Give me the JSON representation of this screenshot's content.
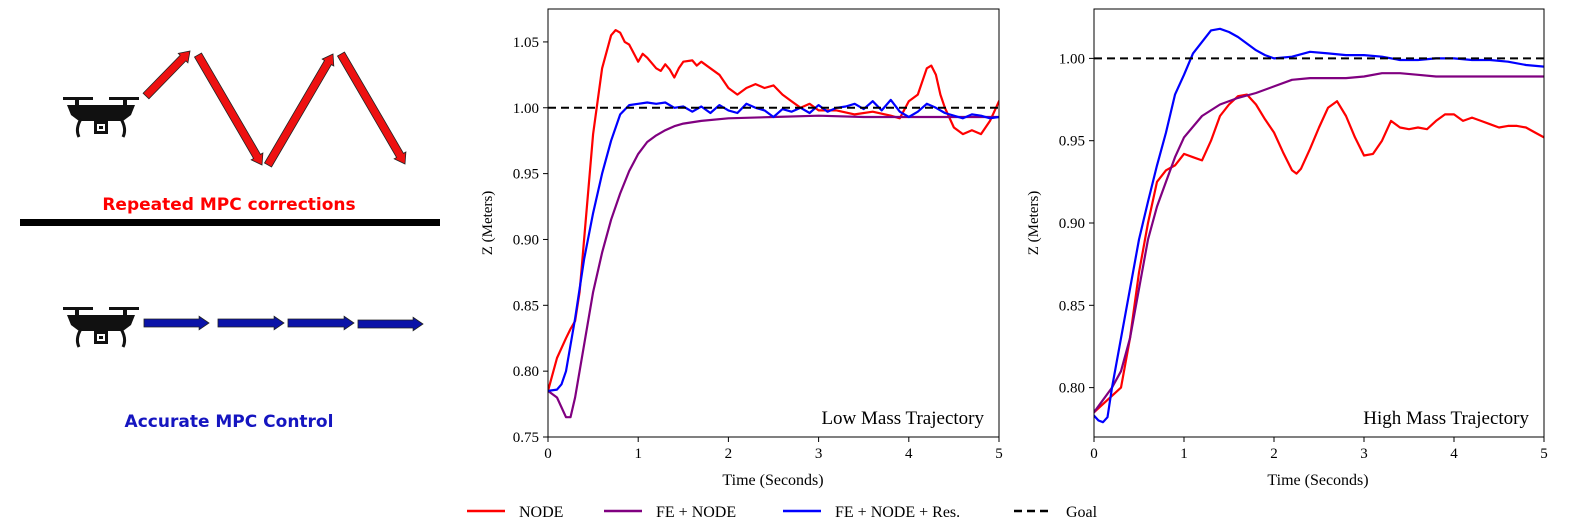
{
  "colors": {
    "node": "#ff0000",
    "fe_node": "#800080",
    "fe_node_res": "#0000ff",
    "goal": "#000000",
    "label_red": "#ff0000",
    "label_blue": "#1515c0",
    "arrow_red": "#ee1111",
    "arrow_blue": "#0b13a8"
  },
  "illustration": {
    "top_caption": "Repeated MPC corrections",
    "bottom_caption": "Accurate MPC Control",
    "top_drone_icon": "drone-icon",
    "bottom_drone_icon": "drone-icon"
  },
  "legend": {
    "items": [
      {
        "label": "NODE",
        "color": "#ff0000",
        "style": "solid"
      },
      {
        "label": "FE + NODE",
        "color": "#800080",
        "style": "solid"
      },
      {
        "label": "FE + NODE + Res.",
        "color": "#0000ff",
        "style": "solid"
      },
      {
        "label": "Goal",
        "color": "#000000",
        "style": "dashed"
      }
    ]
  },
  "chart_data": [
    {
      "type": "line",
      "title": "Low Mass Trajectory",
      "xlabel": "Time (Seconds)",
      "ylabel": "Z (Meters)",
      "xlim": [
        0,
        5
      ],
      "ylim": [
        0.75,
        1.075
      ],
      "xticks": [
        0,
        1,
        2,
        3,
        4,
        5
      ],
      "yticks": [
        0.75,
        0.8,
        0.85,
        0.9,
        0.95,
        1.0,
        1.05
      ],
      "ytick_labels": [
        "0.75",
        "0.80",
        "0.85",
        "0.90",
        "0.95",
        "1.00",
        "1.05"
      ],
      "goal": 1.0,
      "series": [
        {
          "name": "NODE",
          "x": [
            0,
            0.1,
            0.2,
            0.25,
            0.3,
            0.35,
            0.4,
            0.5,
            0.6,
            0.7,
            0.75,
            0.8,
            0.85,
            0.9,
            1.0,
            1.05,
            1.1,
            1.2,
            1.25,
            1.3,
            1.35,
            1.4,
            1.45,
            1.5,
            1.6,
            1.65,
            1.7,
            1.8,
            1.9,
            2.0,
            2.1,
            2.2,
            2.3,
            2.4,
            2.5,
            2.6,
            2.7,
            2.8,
            2.9,
            3.0,
            3.2,
            3.4,
            3.6,
            3.8,
            3.9,
            4.0,
            4.1,
            4.2,
            4.25,
            4.3,
            4.35,
            4.4,
            4.5,
            4.6,
            4.7,
            4.8,
            4.9,
            5.0
          ],
          "values": [
            0.785,
            0.81,
            0.825,
            0.832,
            0.838,
            0.86,
            0.9,
            0.98,
            1.03,
            1.055,
            1.059,
            1.057,
            1.05,
            1.048,
            1.035,
            1.041,
            1.038,
            1.03,
            1.028,
            1.033,
            1.029,
            1.023,
            1.03,
            1.035,
            1.036,
            1.032,
            1.035,
            1.03,
            1.025,
            1.015,
            1.01,
            1.015,
            1.018,
            1.015,
            1.017,
            1.01,
            1.005,
            1.0,
            1.003,
            0.998,
            0.998,
            0.995,
            0.997,
            0.994,
            0.992,
            1.005,
            1.01,
            1.03,
            1.032,
            1.025,
            1.01,
            1.0,
            0.985,
            0.98,
            0.983,
            0.98,
            0.99,
            1.005
          ]
        },
        {
          "name": "FE + NODE",
          "x": [
            0,
            0.1,
            0.2,
            0.25,
            0.3,
            0.4,
            0.5,
            0.6,
            0.7,
            0.8,
            0.9,
            1.0,
            1.1,
            1.2,
            1.3,
            1.4,
            1.5,
            1.7,
            2.0,
            2.5,
            3.0,
            3.5,
            4.0,
            4.5,
            5.0
          ],
          "values": [
            0.785,
            0.78,
            0.765,
            0.765,
            0.78,
            0.82,
            0.86,
            0.89,
            0.915,
            0.935,
            0.952,
            0.965,
            0.974,
            0.979,
            0.983,
            0.986,
            0.988,
            0.99,
            0.992,
            0.993,
            0.994,
            0.993,
            0.993,
            0.993,
            0.993
          ]
        },
        {
          "name": "FE + NODE + Res.",
          "x": [
            0,
            0.1,
            0.15,
            0.2,
            0.3,
            0.4,
            0.5,
            0.6,
            0.7,
            0.8,
            0.9,
            1.0,
            1.1,
            1.2,
            1.3,
            1.4,
            1.5,
            1.6,
            1.7,
            1.8,
            1.9,
            2.0,
            2.1,
            2.2,
            2.3,
            2.4,
            2.5,
            2.6,
            2.7,
            2.8,
            2.9,
            3.0,
            3.1,
            3.2,
            3.3,
            3.4,
            3.5,
            3.6,
            3.7,
            3.8,
            3.9,
            4.0,
            4.1,
            4.2,
            4.3,
            4.4,
            4.5,
            4.6,
            4.7,
            4.8,
            4.9,
            5.0
          ],
          "values": [
            0.785,
            0.786,
            0.79,
            0.8,
            0.84,
            0.885,
            0.92,
            0.95,
            0.975,
            0.995,
            1.002,
            1.003,
            1.004,
            1.003,
            1.004,
            1.0,
            1.001,
            0.997,
            1.001,
            0.996,
            1.002,
            0.998,
            0.996,
            1.003,
            1.0,
            0.998,
            0.993,
            0.999,
            0.997,
            1.0,
            0.996,
            1.002,
            0.997,
            1.0,
            1.001,
            1.003,
            0.999,
            1.005,
            0.998,
            1.006,
            0.997,
            0.993,
            0.997,
            1.003,
            1.0,
            0.996,
            0.994,
            0.992,
            0.995,
            0.994,
            0.992,
            0.993
          ]
        }
      ]
    },
    {
      "type": "line",
      "title": "High Mass Trajectory",
      "xlabel": "Time (Seconds)",
      "ylabel": "Z (Meters)",
      "xlim": [
        0,
        5
      ],
      "ylim": [
        0.77,
        1.03
      ],
      "xticks": [
        0,
        1,
        2,
        3,
        4,
        5
      ],
      "yticks": [
        0.8,
        0.85,
        0.9,
        0.95,
        1.0
      ],
      "ytick_labels": [
        "0.80",
        "0.85",
        "0.90",
        "0.95",
        "1.00"
      ],
      "goal": 1.0,
      "series": [
        {
          "name": "NODE",
          "x": [
            0,
            0.1,
            0.2,
            0.3,
            0.4,
            0.5,
            0.6,
            0.7,
            0.8,
            0.9,
            1.0,
            1.1,
            1.2,
            1.3,
            1.4,
            1.5,
            1.6,
            1.7,
            1.8,
            1.9,
            2.0,
            2.1,
            2.2,
            2.25,
            2.3,
            2.4,
            2.5,
            2.6,
            2.7,
            2.8,
            2.9,
            3.0,
            3.1,
            3.2,
            3.3,
            3.4,
            3.5,
            3.6,
            3.7,
            3.8,
            3.9,
            4.0,
            4.1,
            4.2,
            4.3,
            4.4,
            4.5,
            4.6,
            4.7,
            4.8,
            4.9,
            5.0
          ],
          "values": [
            0.785,
            0.79,
            0.795,
            0.8,
            0.83,
            0.87,
            0.9,
            0.925,
            0.932,
            0.935,
            0.942,
            0.94,
            0.938,
            0.95,
            0.965,
            0.972,
            0.977,
            0.978,
            0.972,
            0.963,
            0.955,
            0.943,
            0.932,
            0.93,
            0.933,
            0.945,
            0.958,
            0.97,
            0.974,
            0.965,
            0.952,
            0.941,
            0.942,
            0.95,
            0.962,
            0.958,
            0.957,
            0.958,
            0.957,
            0.962,
            0.966,
            0.966,
            0.962,
            0.964,
            0.962,
            0.96,
            0.958,
            0.959,
            0.959,
            0.958,
            0.955,
            0.952
          ]
        },
        {
          "name": "FE + NODE",
          "x": [
            0,
            0.2,
            0.3,
            0.4,
            0.5,
            0.6,
            0.7,
            0.8,
            0.9,
            1.0,
            1.2,
            1.4,
            1.6,
            1.8,
            2.0,
            2.2,
            2.4,
            2.6,
            2.8,
            3.0,
            3.2,
            3.4,
            3.6,
            3.8,
            4.0,
            4.5,
            5.0
          ],
          "values": [
            0.785,
            0.8,
            0.81,
            0.83,
            0.86,
            0.89,
            0.91,
            0.925,
            0.94,
            0.952,
            0.965,
            0.972,
            0.976,
            0.979,
            0.983,
            0.987,
            0.988,
            0.988,
            0.988,
            0.989,
            0.991,
            0.991,
            0.99,
            0.989,
            0.989,
            0.989,
            0.989
          ]
        },
        {
          "name": "FE + NODE + Res.",
          "x": [
            0,
            0.05,
            0.1,
            0.15,
            0.2,
            0.3,
            0.4,
            0.5,
            0.6,
            0.7,
            0.8,
            0.9,
            1.0,
            1.1,
            1.2,
            1.3,
            1.4,
            1.5,
            1.6,
            1.7,
            1.8,
            1.9,
            2.0,
            2.2,
            2.4,
            2.6,
            2.8,
            3.0,
            3.2,
            3.4,
            3.6,
            3.8,
            4.0,
            4.2,
            4.4,
            4.6,
            4.8,
            5.0
          ],
          "values": [
            0.783,
            0.78,
            0.779,
            0.782,
            0.8,
            0.83,
            0.86,
            0.89,
            0.913,
            0.935,
            0.955,
            0.978,
            0.99,
            1.003,
            1.01,
            1.017,
            1.018,
            1.016,
            1.013,
            1.009,
            1.005,
            1.002,
            1.0,
            1.001,
            1.004,
            1.003,
            1.002,
            1.002,
            1.001,
            0.999,
            0.999,
            1.0,
            1.0,
            0.999,
            0.999,
            0.998,
            0.996,
            0.995
          ]
        }
      ]
    }
  ]
}
